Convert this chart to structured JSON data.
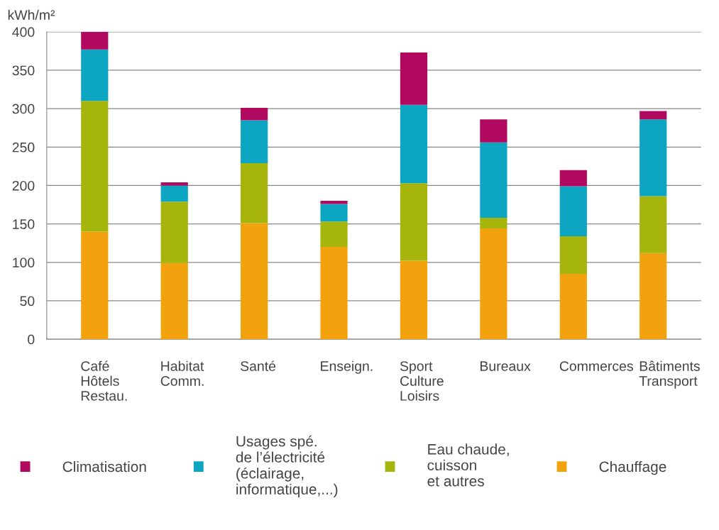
{
  "chart_data": {
    "type": "bar",
    "stacked": true,
    "ylabel": "kWh/m²",
    "categories": [
      "Café\nHôtels\nRestau.",
      "Habitat\nComm.",
      "Santé",
      "Enseign.",
      "Sport\nCulture\nLoisirs",
      "Bureaux",
      "Commerces",
      "Bâtiments\nTransport"
    ],
    "series": [
      {
        "name": "Chauffage",
        "color": "#f2a20c",
        "values": [
          140,
          99,
          151,
          120,
          102,
          144,
          85,
          112
        ]
      },
      {
        "name": "Eau chaude,\ncuisson\net autres",
        "color": "#a5b50c",
        "values": [
          170,
          80,
          78,
          33,
          101,
          14,
          49,
          74
        ]
      },
      {
        "name": "Usages spé.\nde l’électricité\n(éclairage,\ninformatique,...)",
        "color": "#0ca6c2",
        "values": [
          67,
          21,
          56,
          23,
          102,
          98,
          65,
          100
        ]
      },
      {
        "name": "Climatisation",
        "color": "#b0095f",
        "values": [
          23,
          4,
          16,
          4,
          68,
          30,
          21,
          11
        ]
      }
    ],
    "ylim": [
      0,
      400
    ],
    "yticks": [
      0,
      50,
      100,
      150,
      200,
      250,
      300,
      350,
      400
    ],
    "grid": "y",
    "legend": "bottom"
  }
}
